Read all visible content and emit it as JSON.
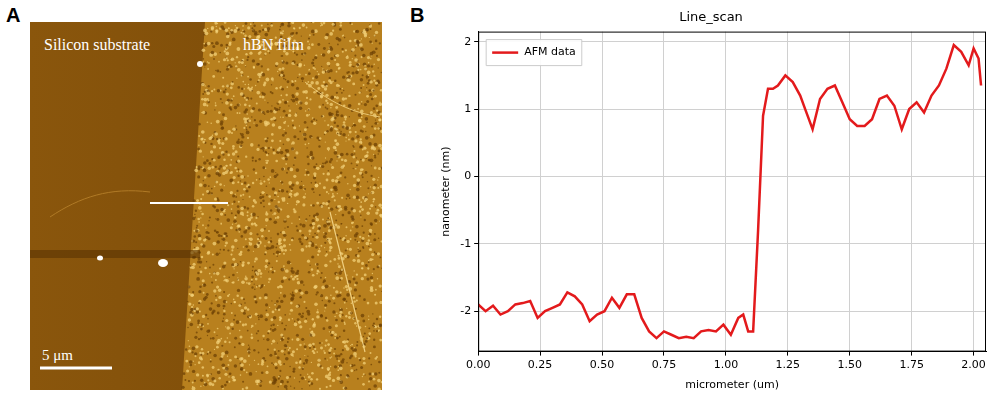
{
  "image_panel": {
    "letter": "A",
    "left_label": "Silicon substrate",
    "right_label": "hBN film",
    "scale_bar": "5 μm"
  },
  "chart_panel_letter": "B",
  "chart_data": {
    "type": "line",
    "title": "Line_scan",
    "x_label": "micrometer (um)",
    "y_label": "nanometer (nm)",
    "series": [
      {
        "name": "AFM data",
        "color": "#e31a1c",
        "x": [
          0.0,
          0.03,
          0.06,
          0.09,
          0.12,
          0.15,
          0.18,
          0.21,
          0.24,
          0.27,
          0.3,
          0.33,
          0.36,
          0.39,
          0.42,
          0.45,
          0.48,
          0.51,
          0.54,
          0.57,
          0.6,
          0.63,
          0.66,
          0.69,
          0.72,
          0.75,
          0.78,
          0.81,
          0.84,
          0.87,
          0.9,
          0.93,
          0.96,
          0.99,
          1.02,
          1.05,
          1.07,
          1.09,
          1.11,
          1.13,
          1.15,
          1.17,
          1.19,
          1.21,
          1.24,
          1.27,
          1.3,
          1.32,
          1.35,
          1.38,
          1.41,
          1.44,
          1.47,
          1.5,
          1.53,
          1.56,
          1.59,
          1.62,
          1.65,
          1.68,
          1.71,
          1.74,
          1.77,
          1.8,
          1.83,
          1.86,
          1.89,
          1.92,
          1.95,
          1.98,
          2.0,
          2.02,
          2.03
        ],
        "values": [
          -1.9,
          -2.0,
          -1.92,
          -2.05,
          -2.0,
          -1.9,
          -1.88,
          -1.85,
          -2.1,
          -2.0,
          -1.95,
          -1.9,
          -1.72,
          -1.78,
          -1.9,
          -2.15,
          -2.05,
          -2.0,
          -1.8,
          -1.95,
          -1.75,
          -1.75,
          -2.1,
          -2.3,
          -2.4,
          -2.3,
          -2.35,
          -2.4,
          -2.38,
          -2.4,
          -2.3,
          -2.28,
          -2.3,
          -2.2,
          -2.35,
          -2.1,
          -2.05,
          -2.3,
          -2.3,
          -0.8,
          0.9,
          1.3,
          1.3,
          1.35,
          1.5,
          1.4,
          1.2,
          1.0,
          0.7,
          1.15,
          1.3,
          1.35,
          1.1,
          0.85,
          0.75,
          0.75,
          0.85,
          1.15,
          1.2,
          1.05,
          0.7,
          1.0,
          1.1,
          0.95,
          1.2,
          1.35,
          1.6,
          1.95,
          1.85,
          1.65,
          1.9,
          1.75,
          1.35
        ]
      }
    ],
    "xlim": [
      0,
      2.05
    ],
    "xticks": [
      {
        "value": 0,
        "label": "0.00"
      },
      {
        "value": 0.25,
        "label": "0.25"
      },
      {
        "value": 0.5,
        "label": "0.50"
      },
      {
        "value": 0.75,
        "label": "0.75"
      },
      {
        "value": 1,
        "label": "1.00"
      },
      {
        "value": 1.25,
        "label": "1.25"
      },
      {
        "value": 1.5,
        "label": "1.50"
      },
      {
        "value": 1.75,
        "label": "1.75"
      },
      {
        "value": 2,
        "label": "2.00"
      }
    ],
    "ylim": [
      -2.6,
      2.15
    ],
    "yticks": [
      -2,
      -1,
      0,
      1,
      2
    ],
    "grid": true,
    "legend": "upper left"
  }
}
